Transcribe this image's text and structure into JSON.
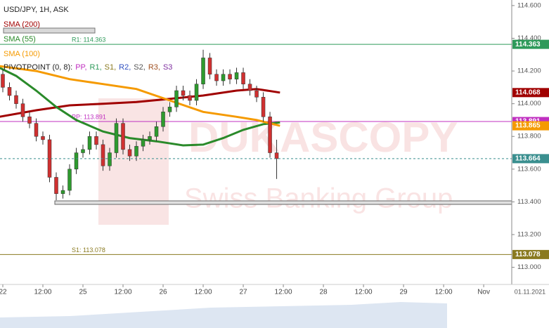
{
  "chart_data": {
    "type": "candlestick",
    "title": "USD/JPY, 1H, ASK",
    "watermark": {
      "brand": "DUKASCOPY",
      "tagline": "Swiss Banking Group"
    },
    "date_label": "01.11.2021",
    "xlim": [
      -0.84,
      152.4
    ],
    "ylim": [
      112.895,
      114.634
    ],
    "yticks": [
      {
        "value": 114.6,
        "label": "114.600"
      },
      {
        "value": 114.4,
        "label": "114.400"
      },
      {
        "value": 114.2,
        "label": "114.200"
      },
      {
        "value": 114.0,
        "label": "114.000"
      },
      {
        "value": 113.8,
        "label": "113.800"
      },
      {
        "value": 113.6,
        "label": "113.600"
      },
      {
        "value": 113.4,
        "label": "113.400"
      },
      {
        "value": 113.2,
        "label": "113.200"
      },
      {
        "value": 113.0,
        "label": "113.000"
      }
    ],
    "xticks": [
      {
        "value": 0,
        "label": "22"
      },
      {
        "value": 12,
        "label": "12:00"
      },
      {
        "value": 24,
        "label": "25"
      },
      {
        "value": 36,
        "label": "12:00"
      },
      {
        "value": 48,
        "label": "26"
      },
      {
        "value": 60,
        "label": "12:00"
      },
      {
        "value": 72,
        "label": "27"
      },
      {
        "value": 84,
        "label": "12:00"
      },
      {
        "value": 96,
        "label": "28"
      },
      {
        "value": 108,
        "label": "12:00"
      },
      {
        "value": 120,
        "label": "29"
      },
      {
        "value": 132,
        "label": "12:00"
      },
      {
        "value": 144,
        "label": "Nov"
      }
    ],
    "candles": {
      "up_color": "#2e9a2e",
      "down_color": "#d03030",
      "x": [
        0,
        2,
        4,
        6,
        8,
        10,
        12,
        14,
        16,
        18,
        20,
        22,
        24,
        26,
        28,
        30,
        32,
        34,
        36,
        38,
        40,
        42,
        44,
        46,
        48,
        50,
        52,
        54,
        56,
        58,
        60,
        62,
        64,
        66,
        68,
        70,
        72,
        74,
        76,
        78,
        80,
        82
      ],
      "open": [
        114.18,
        114.1,
        114.05,
        114.0,
        113.92,
        113.88,
        113.8,
        113.78,
        113.55,
        113.45,
        113.47,
        113.6,
        113.7,
        113.72,
        113.8,
        113.75,
        113.62,
        113.7,
        113.88,
        113.72,
        113.68,
        113.74,
        113.78,
        113.8,
        113.86,
        113.95,
        113.98,
        114.08,
        114.05,
        114.02,
        114.12,
        114.28,
        114.18,
        114.14,
        114.18,
        114.15,
        114.19,
        114.12,
        114.08,
        114.04,
        113.92,
        113.7
      ],
      "high": [
        114.21,
        114.13,
        114.08,
        114.03,
        113.95,
        113.91,
        113.83,
        113.81,
        113.58,
        113.5,
        113.63,
        113.73,
        113.75,
        113.83,
        113.83,
        113.78,
        113.73,
        113.91,
        113.91,
        113.75,
        113.77,
        113.81,
        113.83,
        113.89,
        113.98,
        114.01,
        114.11,
        114.11,
        114.08,
        114.15,
        114.33,
        114.31,
        114.21,
        114.21,
        114.21,
        114.22,
        114.22,
        114.15,
        114.11,
        114.07,
        113.95,
        113.78
      ],
      "low": [
        114.07,
        114.02,
        113.97,
        113.89,
        113.85,
        113.77,
        113.75,
        113.52,
        113.41,
        113.42,
        113.44,
        113.57,
        113.67,
        113.69,
        113.72,
        113.59,
        113.59,
        113.67,
        113.69,
        113.65,
        113.65,
        113.71,
        113.75,
        113.77,
        113.83,
        113.92,
        113.95,
        114.02,
        113.99,
        113.99,
        114.09,
        114.15,
        114.11,
        114.11,
        114.12,
        114.12,
        114.09,
        114.05,
        114.01,
        113.89,
        113.67,
        113.54
      ],
      "close": [
        114.1,
        114.05,
        114.0,
        113.92,
        113.88,
        113.8,
        113.78,
        113.55,
        113.45,
        113.47,
        113.6,
        113.7,
        113.72,
        113.8,
        113.75,
        113.62,
        113.7,
        113.88,
        113.72,
        113.68,
        113.74,
        113.78,
        113.8,
        113.86,
        113.95,
        113.98,
        114.08,
        114.05,
        114.02,
        114.12,
        114.28,
        114.18,
        114.14,
        114.18,
        114.15,
        114.19,
        114.12,
        114.08,
        114.04,
        113.92,
        113.7,
        113.664
      ]
    },
    "last_price": {
      "value": 113.664,
      "label": "113.664",
      "color": "#3a8f8f"
    },
    "series": [
      {
        "name": "SMA (200)",
        "color": "#a00000",
        "x": [
          -1,
          10,
          20,
          30,
          40,
          50,
          60,
          70,
          76,
          83
        ],
        "values": [
          113.92,
          113.96,
          113.99,
          114.0,
          114.01,
          114.03,
          114.05,
          114.08,
          114.09,
          114.068
        ],
        "last": {
          "value": 114.068,
          "label": "114.068"
        }
      },
      {
        "name": "SMA (55)",
        "color": "#2a8a2a",
        "x": [
          -1,
          4,
          10,
          16,
          22,
          30,
          38,
          46,
          54,
          60,
          66,
          72,
          78,
          83
        ],
        "values": [
          114.22,
          114.17,
          114.08,
          113.98,
          113.9,
          113.83,
          113.79,
          113.77,
          113.745,
          113.75,
          113.79,
          113.84,
          113.875,
          113.885
        ]
      },
      {
        "name": "SMA (100)",
        "color": "#f59a00",
        "x": [
          -1,
          10,
          20,
          30,
          40,
          50,
          60,
          70,
          76,
          83
        ],
        "values": [
          114.23,
          114.2,
          114.15,
          114.12,
          114.09,
          114.02,
          113.95,
          113.92,
          113.9,
          113.865
        ],
        "last": {
          "value": 113.865,
          "label": "113.865"
        }
      }
    ],
    "pivot_legend": {
      "text": "PIVOTPOINT (0, 8):",
      "items": [
        {
          "text": "PP,",
          "color": "#c030c0"
        },
        {
          "text": "R1,",
          "color": "#2e9a5a"
        },
        {
          "text": "S1,",
          "color": "#8a7a20"
        },
        {
          "text": "R2,",
          "color": "#3050c0"
        },
        {
          "text": "S2,",
          "color": "#555555"
        },
        {
          "text": "R3,",
          "color": "#a05020"
        },
        {
          "text": "S3",
          "color": "#8030a0"
        }
      ]
    },
    "levels": [
      {
        "label": "R1: 114.363",
        "value": 114.363,
        "value_label": "114.363",
        "color": "#2e9a5a"
      },
      {
        "label": "PP: 113.891",
        "value": 113.891,
        "value_label": "113.891",
        "color": "#c030c0"
      },
      {
        "label": "S1: 113.078",
        "value": 113.078,
        "value_label": "113.078",
        "color": "#8a7a20"
      }
    ]
  }
}
